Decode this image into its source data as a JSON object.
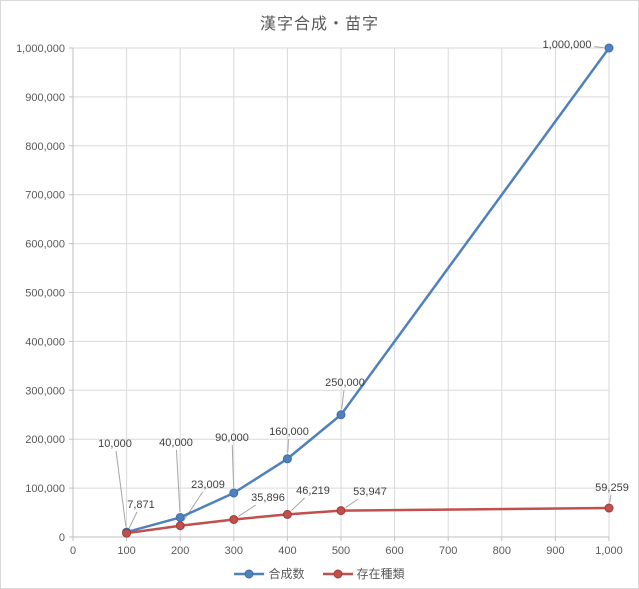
{
  "chart_data": {
    "type": "line",
    "title": "漢字合成・苗字",
    "xlabel": "",
    "ylabel": "",
    "xlim": [
      0,
      1000
    ],
    "ylim": [
      0,
      1000000
    ],
    "grid": true,
    "legend_position": "bottom",
    "x_ticks": {
      "values": [
        0,
        100,
        200,
        300,
        400,
        500,
        600,
        700,
        800,
        900,
        1000
      ],
      "labels": [
        "0",
        "100",
        "200",
        "300",
        "400",
        "500",
        "600",
        "700",
        "800",
        "900",
        "1,000"
      ]
    },
    "y_ticks": {
      "values": [
        0,
        100000,
        200000,
        300000,
        400000,
        500000,
        600000,
        700000,
        800000,
        900000,
        1000000
      ],
      "labels": [
        "0",
        "100,000",
        "200,000",
        "300,000",
        "400,000",
        "500,000",
        "600,000",
        "700,000",
        "800,000",
        "900,000",
        "1,000,000"
      ]
    },
    "x": [
      100,
      200,
      300,
      400,
      500,
      1000
    ],
    "series": [
      {
        "name": "合成数",
        "color": "#4f81bd",
        "marker_border": "#3c6da8",
        "values": [
          10000,
          40000,
          90000,
          160000,
          250000,
          1000000
        ],
        "labels": [
          "10,000",
          "40,000",
          "90,000",
          "160,000",
          "250,000",
          "1,000,000"
        ]
      },
      {
        "name": "存在種類",
        "color": "#c0504d",
        "marker_border": "#a33936",
        "values": [
          7871,
          23009,
          35896,
          46219,
          53947,
          59259
        ],
        "labels": [
          "7,871",
          "23,009",
          "35,896",
          "46,219",
          "53,947",
          "59,259"
        ]
      }
    ],
    "style": {
      "gridline": "#d9d9d9",
      "axis": "#bfbfbf",
      "tick_label": "#595959",
      "data_label": "#404040",
      "leader": "#a6a6a6",
      "title_color": "#595959",
      "background": "#ffffff",
      "border": "#d9d9d9"
    }
  }
}
